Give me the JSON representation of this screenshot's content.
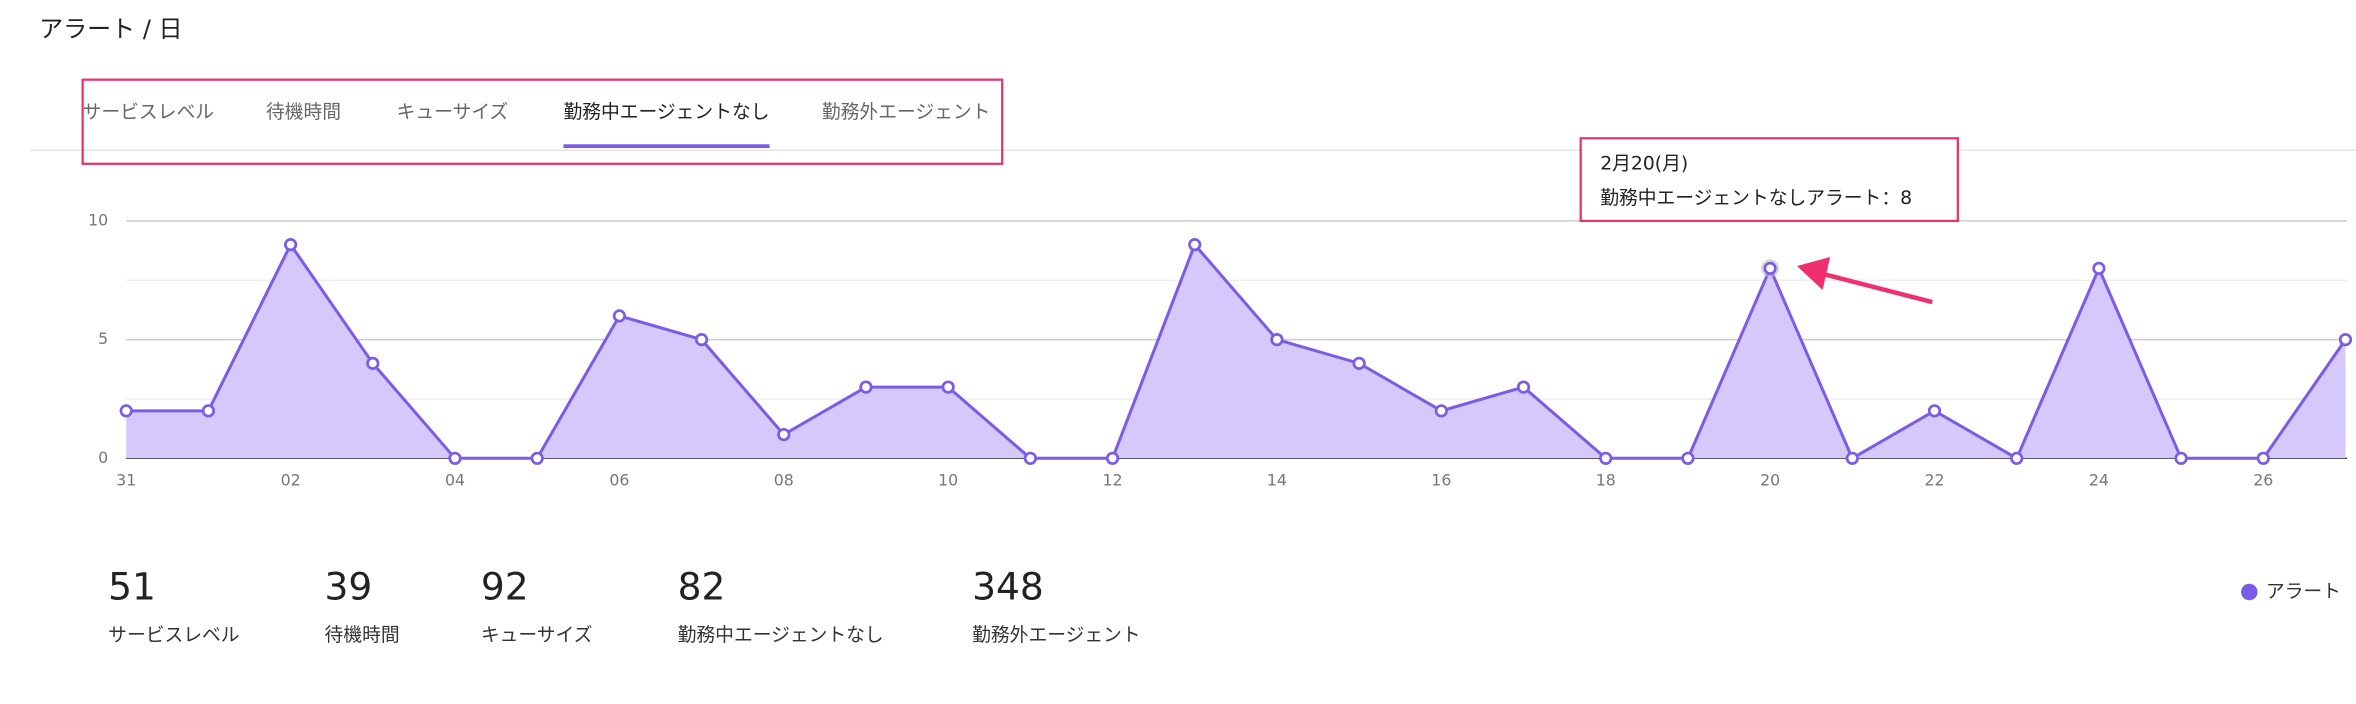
{
  "header": {
    "title": "アラート / 日"
  },
  "tabs": [
    "サービスレベル",
    "待機時間",
    "キューサイズ",
    "勤務中エージェントなし",
    "勤務外エージェント"
  ],
  "active_tab": 3,
  "chart_data": {
    "type": "area",
    "categories": [
      "31",
      null,
      "02",
      null,
      "04",
      null,
      "06",
      null,
      "08",
      null,
      "10",
      null,
      "12",
      null,
      "14",
      null,
      "16",
      null,
      "18",
      null,
      "20",
      null,
      "22",
      null,
      "24",
      null,
      "26",
      null
    ],
    "series": [
      {
        "name": "アラート",
        "color": "#7b5ce6",
        "fill": "#d4c9fa",
        "values": [
          2,
          2,
          9,
          4,
          0,
          0,
          6,
          5,
          1,
          3,
          3,
          0,
          0,
          9,
          5,
          4,
          2,
          3,
          0,
          0,
          8,
          0,
          2,
          0,
          8,
          0,
          0,
          5
        ]
      }
    ],
    "ylim": [
      0,
      10
    ],
    "yticks": [
      0,
      5,
      10
    ],
    "minor_yticks": [
      2.5,
      7.5
    ],
    "grid": true,
    "tooltip": {
      "index": 20,
      "title": "2月20(月)",
      "text": "勤務中エージェントなしアラート：8"
    }
  },
  "stats": [
    {
      "value": 51,
      "label": "サービスレベル"
    },
    {
      "value": 39,
      "label": "待機時間"
    },
    {
      "value": 92,
      "label": "キューサイズ"
    },
    {
      "value": 82,
      "label": "勤務中エージェントなし"
    },
    {
      "value": 348,
      "label": "勤務外エージェント"
    }
  ]
}
